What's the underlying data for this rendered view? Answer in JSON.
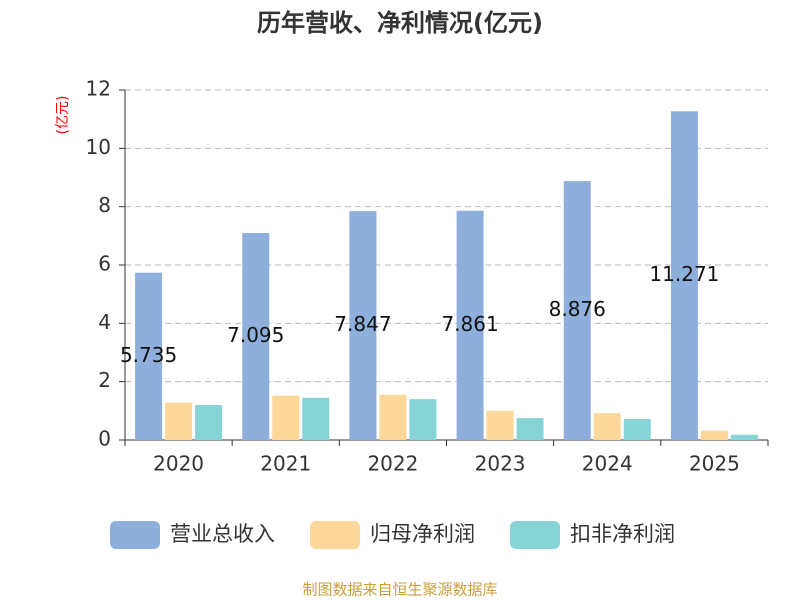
{
  "chart_data": {
    "type": "bar",
    "title": "历年营收、净利情况(亿元)",
    "y_label": "(亿元)",
    "categories": [
      "2020",
      "2021",
      "2022",
      "2023",
      "2024",
      "2025"
    ],
    "series": [
      {
        "name": "营业总收入",
        "color": "#8eaedb",
        "values": [
          5.735,
          7.095,
          7.847,
          7.861,
          8.876,
          11.271
        ],
        "show_labels": true
      },
      {
        "name": "归母净利润",
        "color": "#fdd898",
        "values": [
          1.28,
          1.52,
          1.55,
          1.0,
          0.92,
          0.32
        ],
        "show_labels": false
      },
      {
        "name": "扣非净利润",
        "color": "#87d4d7",
        "values": [
          1.2,
          1.45,
          1.4,
          0.75,
          0.72,
          0.18
        ],
        "show_labels": false
      }
    ],
    "ylim": [
      0,
      12
    ],
    "yticks": [
      0,
      2,
      4,
      6,
      8,
      10,
      12
    ],
    "grid": true,
    "source": "制图数据来自恒生聚源数据库"
  }
}
